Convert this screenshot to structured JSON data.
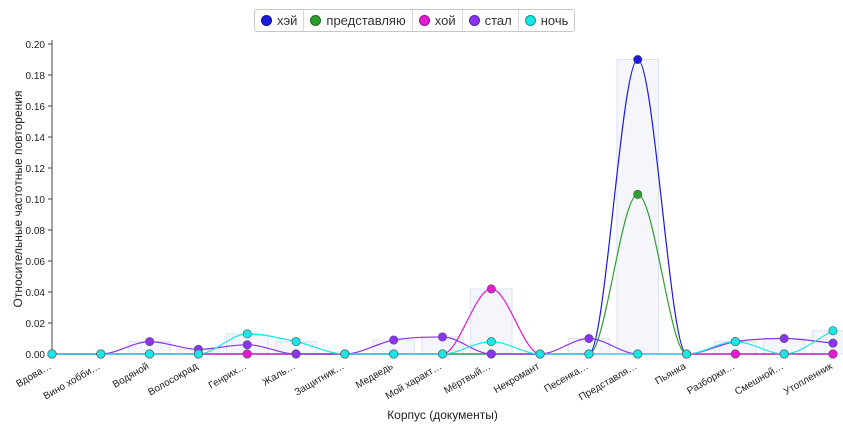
{
  "chart_data": {
    "type": "line",
    "xlabel": "Корпус (документы)",
    "ylabel": "Относительные частотные повторения",
    "ylim": [
      0,
      0.2
    ],
    "yticks": [
      "0.00",
      "0.02",
      "0.04",
      "0.06",
      "0.08",
      "0.10",
      "0.12",
      "0.14",
      "0.16",
      "0.18",
      "0.20"
    ],
    "categories": [
      "Вдова…",
      "Вино хобби…",
      "Водяной",
      "Волосокрад",
      "Генрих…",
      "Жаль…",
      "Защитник…",
      "Медведь",
      "Мой характ…",
      "Мёртвый…",
      "Некромант",
      "Песенка…",
      "Представля…",
      "Пьянка",
      "Разборки…",
      "Смешной…",
      "Утопленник"
    ],
    "legend_position": "top-center",
    "series": [
      {
        "name": "хэй",
        "color": "#1a1adc",
        "values": [
          0,
          0,
          0,
          0,
          0,
          0,
          0,
          0,
          0,
          0,
          0,
          0,
          0.19,
          0,
          0,
          0,
          0
        ]
      },
      {
        "name": "представляю",
        "color": "#2e9e2e",
        "values": [
          0,
          0,
          0,
          0,
          0,
          0,
          0,
          0,
          0,
          0,
          0,
          0,
          0.103,
          0,
          0,
          0,
          0
        ]
      },
      {
        "name": "хой",
        "color": "#e619d4",
        "values": [
          0,
          0,
          0,
          0,
          0,
          0,
          0,
          0,
          0,
          0.042,
          0,
          0,
          0,
          0,
          0,
          0,
          0
        ]
      },
      {
        "name": "стал",
        "color": "#8a33f0",
        "values": [
          0,
          0,
          0.008,
          0.003,
          0.006,
          0,
          0,
          0.009,
          0.011,
          0,
          0,
          0.01,
          0,
          0,
          0.008,
          0.01,
          0.007
        ]
      },
      {
        "name": "ночь",
        "color": "#19e6e6",
        "values": [
          0,
          0,
          0,
          0,
          0.013,
          0.008,
          0,
          0,
          0,
          0.008,
          0,
          0,
          0,
          0,
          0.008,
          0,
          0.015
        ]
      }
    ]
  }
}
